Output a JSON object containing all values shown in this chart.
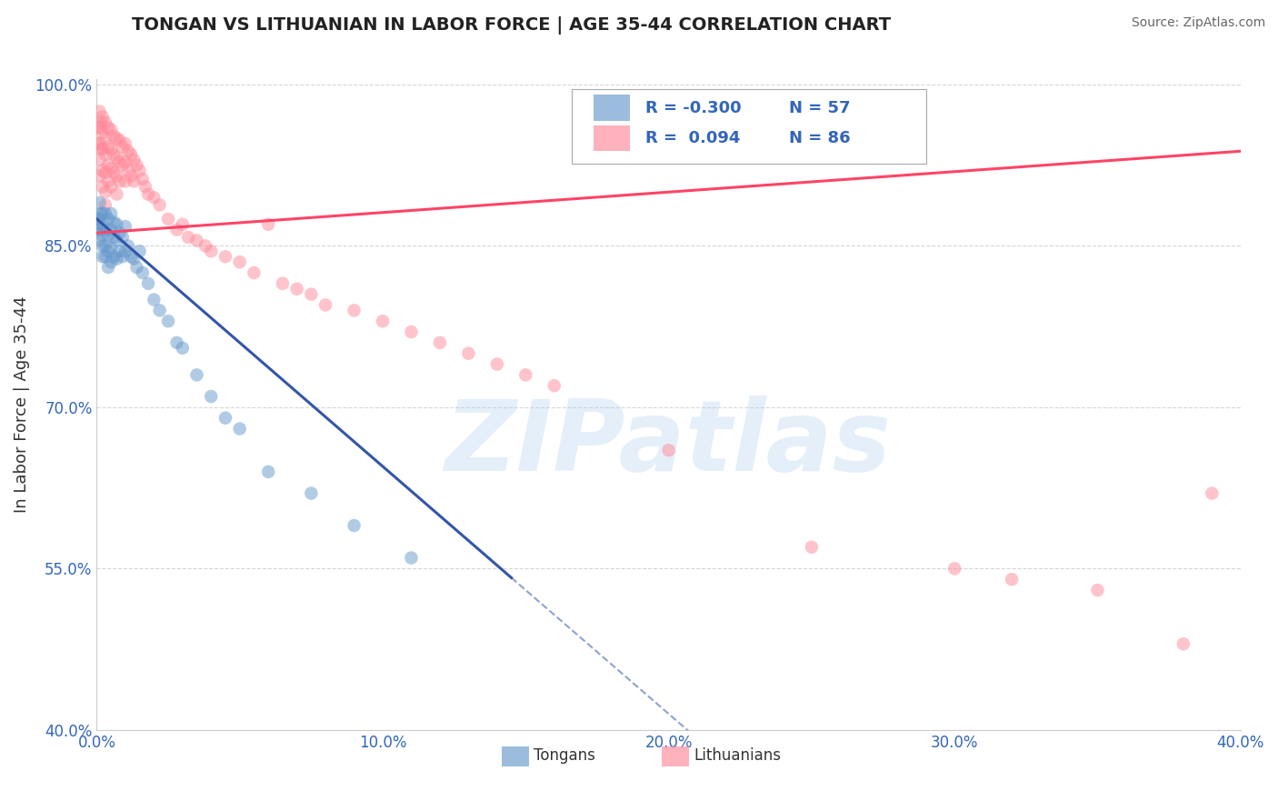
{
  "title": "TONGAN VS LITHUANIAN IN LABOR FORCE | AGE 35-44 CORRELATION CHART",
  "source": "Source: ZipAtlas.com",
  "ylabel": "In Labor Force | Age 35-44",
  "xlim": [
    0.0,
    0.4
  ],
  "ylim": [
    0.4,
    1.005
  ],
  "xticks": [
    0.0,
    0.1,
    0.2,
    0.3,
    0.4
  ],
  "xtick_labels": [
    "0.0%",
    "10.0%",
    "20.0%",
    "30.0%",
    "40.0%"
  ],
  "yticks": [
    0.4,
    0.55,
    0.7,
    0.85,
    1.0
  ],
  "ytick_labels": [
    "40.0%",
    "55.0%",
    "70.0%",
    "85.0%",
    "100.0%"
  ],
  "tongan_R": -0.3,
  "tongan_N": 57,
  "lithuanian_R": 0.094,
  "lithuanian_N": 86,
  "tongan_color": "#6699CC",
  "lithuanian_color": "#FF8899",
  "tongan_line_color": "#3355AA",
  "lithuanian_line_color": "#FF4466",
  "watermark": "ZIPatlas",
  "watermark_color": "#AACCEE",
  "background_color": "#FFFFFF",
  "grid_color": "#CCCCCC",
  "tongan_x": [
    0.0005,
    0.0005,
    0.001,
    0.001,
    0.001,
    0.001,
    0.0015,
    0.0015,
    0.002,
    0.002,
    0.002,
    0.002,
    0.002,
    0.003,
    0.003,
    0.003,
    0.003,
    0.004,
    0.004,
    0.004,
    0.004,
    0.005,
    0.005,
    0.005,
    0.005,
    0.006,
    0.006,
    0.006,
    0.007,
    0.007,
    0.007,
    0.008,
    0.008,
    0.009,
    0.009,
    0.01,
    0.01,
    0.011,
    0.012,
    0.013,
    0.014,
    0.015,
    0.016,
    0.018,
    0.02,
    0.022,
    0.025,
    0.028,
    0.03,
    0.035,
    0.04,
    0.045,
    0.05,
    0.06,
    0.075,
    0.09,
    0.11
  ],
  "tongan_y": [
    0.875,
    0.87,
    0.89,
    0.875,
    0.865,
    0.855,
    0.88,
    0.865,
    0.88,
    0.87,
    0.86,
    0.85,
    0.84,
    0.88,
    0.865,
    0.85,
    0.84,
    0.875,
    0.86,
    0.845,
    0.83,
    0.88,
    0.865,
    0.848,
    0.835,
    0.872,
    0.858,
    0.84,
    0.87,
    0.855,
    0.838,
    0.862,
    0.845,
    0.858,
    0.84,
    0.868,
    0.845,
    0.85,
    0.84,
    0.838,
    0.83,
    0.845,
    0.825,
    0.815,
    0.8,
    0.79,
    0.78,
    0.76,
    0.755,
    0.73,
    0.71,
    0.69,
    0.68,
    0.64,
    0.62,
    0.59,
    0.56
  ],
  "lithuanian_x": [
    0.0005,
    0.0005,
    0.001,
    0.001,
    0.001,
    0.001,
    0.001,
    0.0015,
    0.0015,
    0.002,
    0.002,
    0.002,
    0.002,
    0.002,
    0.003,
    0.003,
    0.003,
    0.003,
    0.003,
    0.003,
    0.004,
    0.004,
    0.004,
    0.004,
    0.005,
    0.005,
    0.005,
    0.005,
    0.006,
    0.006,
    0.006,
    0.007,
    0.007,
    0.007,
    0.007,
    0.008,
    0.008,
    0.008,
    0.009,
    0.009,
    0.01,
    0.01,
    0.01,
    0.011,
    0.011,
    0.012,
    0.012,
    0.013,
    0.013,
    0.014,
    0.015,
    0.016,
    0.017,
    0.018,
    0.02,
    0.022,
    0.025,
    0.028,
    0.03,
    0.032,
    0.035,
    0.038,
    0.04,
    0.045,
    0.05,
    0.055,
    0.06,
    0.065,
    0.07,
    0.075,
    0.08,
    0.09,
    0.1,
    0.11,
    0.12,
    0.13,
    0.14,
    0.15,
    0.16,
    0.2,
    0.25,
    0.3,
    0.32,
    0.35,
    0.38,
    0.39
  ],
  "lithuanian_y": [
    0.96,
    0.945,
    0.975,
    0.96,
    0.945,
    0.93,
    0.915,
    0.965,
    0.94,
    0.97,
    0.955,
    0.94,
    0.92,
    0.905,
    0.965,
    0.95,
    0.935,
    0.918,
    0.9,
    0.888,
    0.96,
    0.942,
    0.925,
    0.91,
    0.958,
    0.94,
    0.922,
    0.905,
    0.952,
    0.935,
    0.918,
    0.95,
    0.932,
    0.915,
    0.898,
    0.948,
    0.928,
    0.91,
    0.942,
    0.925,
    0.945,
    0.928,
    0.91,
    0.938,
    0.92,
    0.935,
    0.915,
    0.93,
    0.91,
    0.925,
    0.92,
    0.912,
    0.905,
    0.898,
    0.895,
    0.888,
    0.875,
    0.865,
    0.87,
    0.858,
    0.855,
    0.85,
    0.845,
    0.84,
    0.835,
    0.825,
    0.87,
    0.815,
    0.81,
    0.805,
    0.795,
    0.79,
    0.78,
    0.77,
    0.76,
    0.75,
    0.74,
    0.73,
    0.72,
    0.66,
    0.57,
    0.55,
    0.54,
    0.53,
    0.48,
    0.62
  ],
  "tongan_line_start": 0.0,
  "tongan_line_solid_end": 0.145,
  "tongan_line_dash_end": 0.4,
  "lithuanian_line_start": 0.0,
  "lithuanian_line_end": 0.4,
  "tongan_intercept": 0.875,
  "tongan_slope": -2.3,
  "lithuanian_intercept": 0.862,
  "lithuanian_slope": 0.19
}
